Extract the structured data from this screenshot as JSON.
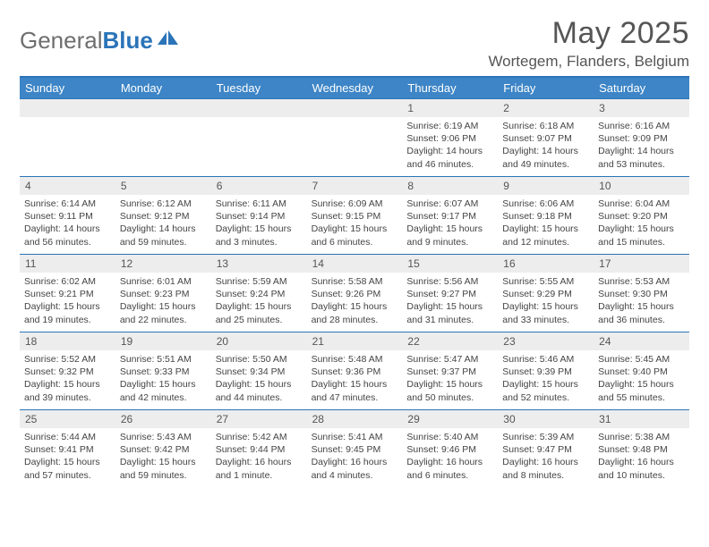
{
  "logo": {
    "word1": "General",
    "word2": "Blue"
  },
  "title": "May 2025",
  "location": "Wortegem, Flanders, Belgium",
  "colors": {
    "header_bar": "#3d85c6",
    "rule": "#2b74b8",
    "daynum_bg": "#ededed",
    "text": "#444444",
    "title_text": "#555555"
  },
  "weekdays": [
    "Sunday",
    "Monday",
    "Tuesday",
    "Wednesday",
    "Thursday",
    "Friday",
    "Saturday"
  ],
  "weeks": [
    [
      {
        "n": "",
        "sr": "",
        "ss": "",
        "dl": ""
      },
      {
        "n": "",
        "sr": "",
        "ss": "",
        "dl": ""
      },
      {
        "n": "",
        "sr": "",
        "ss": "",
        "dl": ""
      },
      {
        "n": "",
        "sr": "",
        "ss": "",
        "dl": ""
      },
      {
        "n": "1",
        "sr": "6:19 AM",
        "ss": "9:06 PM",
        "dl": "14 hours and 46 minutes."
      },
      {
        "n": "2",
        "sr": "6:18 AM",
        "ss": "9:07 PM",
        "dl": "14 hours and 49 minutes."
      },
      {
        "n": "3",
        "sr": "6:16 AM",
        "ss": "9:09 PM",
        "dl": "14 hours and 53 minutes."
      }
    ],
    [
      {
        "n": "4",
        "sr": "6:14 AM",
        "ss": "9:11 PM",
        "dl": "14 hours and 56 minutes."
      },
      {
        "n": "5",
        "sr": "6:12 AM",
        "ss": "9:12 PM",
        "dl": "14 hours and 59 minutes."
      },
      {
        "n": "6",
        "sr": "6:11 AM",
        "ss": "9:14 PM",
        "dl": "15 hours and 3 minutes."
      },
      {
        "n": "7",
        "sr": "6:09 AM",
        "ss": "9:15 PM",
        "dl": "15 hours and 6 minutes."
      },
      {
        "n": "8",
        "sr": "6:07 AM",
        "ss": "9:17 PM",
        "dl": "15 hours and 9 minutes."
      },
      {
        "n": "9",
        "sr": "6:06 AM",
        "ss": "9:18 PM",
        "dl": "15 hours and 12 minutes."
      },
      {
        "n": "10",
        "sr": "6:04 AM",
        "ss": "9:20 PM",
        "dl": "15 hours and 15 minutes."
      }
    ],
    [
      {
        "n": "11",
        "sr": "6:02 AM",
        "ss": "9:21 PM",
        "dl": "15 hours and 19 minutes."
      },
      {
        "n": "12",
        "sr": "6:01 AM",
        "ss": "9:23 PM",
        "dl": "15 hours and 22 minutes."
      },
      {
        "n": "13",
        "sr": "5:59 AM",
        "ss": "9:24 PM",
        "dl": "15 hours and 25 minutes."
      },
      {
        "n": "14",
        "sr": "5:58 AM",
        "ss": "9:26 PM",
        "dl": "15 hours and 28 minutes."
      },
      {
        "n": "15",
        "sr": "5:56 AM",
        "ss": "9:27 PM",
        "dl": "15 hours and 31 minutes."
      },
      {
        "n": "16",
        "sr": "5:55 AM",
        "ss": "9:29 PM",
        "dl": "15 hours and 33 minutes."
      },
      {
        "n": "17",
        "sr": "5:53 AM",
        "ss": "9:30 PM",
        "dl": "15 hours and 36 minutes."
      }
    ],
    [
      {
        "n": "18",
        "sr": "5:52 AM",
        "ss": "9:32 PM",
        "dl": "15 hours and 39 minutes."
      },
      {
        "n": "19",
        "sr": "5:51 AM",
        "ss": "9:33 PM",
        "dl": "15 hours and 42 minutes."
      },
      {
        "n": "20",
        "sr": "5:50 AM",
        "ss": "9:34 PM",
        "dl": "15 hours and 44 minutes."
      },
      {
        "n": "21",
        "sr": "5:48 AM",
        "ss": "9:36 PM",
        "dl": "15 hours and 47 minutes."
      },
      {
        "n": "22",
        "sr": "5:47 AM",
        "ss": "9:37 PM",
        "dl": "15 hours and 50 minutes."
      },
      {
        "n": "23",
        "sr": "5:46 AM",
        "ss": "9:39 PM",
        "dl": "15 hours and 52 minutes."
      },
      {
        "n": "24",
        "sr": "5:45 AM",
        "ss": "9:40 PM",
        "dl": "15 hours and 55 minutes."
      }
    ],
    [
      {
        "n": "25",
        "sr": "5:44 AM",
        "ss": "9:41 PM",
        "dl": "15 hours and 57 minutes."
      },
      {
        "n": "26",
        "sr": "5:43 AM",
        "ss": "9:42 PM",
        "dl": "15 hours and 59 minutes."
      },
      {
        "n": "27",
        "sr": "5:42 AM",
        "ss": "9:44 PM",
        "dl": "16 hours and 1 minute."
      },
      {
        "n": "28",
        "sr": "5:41 AM",
        "ss": "9:45 PM",
        "dl": "16 hours and 4 minutes."
      },
      {
        "n": "29",
        "sr": "5:40 AM",
        "ss": "9:46 PM",
        "dl": "16 hours and 6 minutes."
      },
      {
        "n": "30",
        "sr": "5:39 AM",
        "ss": "9:47 PM",
        "dl": "16 hours and 8 minutes."
      },
      {
        "n": "31",
        "sr": "5:38 AM",
        "ss": "9:48 PM",
        "dl": "16 hours and 10 minutes."
      }
    ]
  ],
  "labels": {
    "sunrise": "Sunrise:",
    "sunset": "Sunset:",
    "daylight": "Daylight:"
  }
}
